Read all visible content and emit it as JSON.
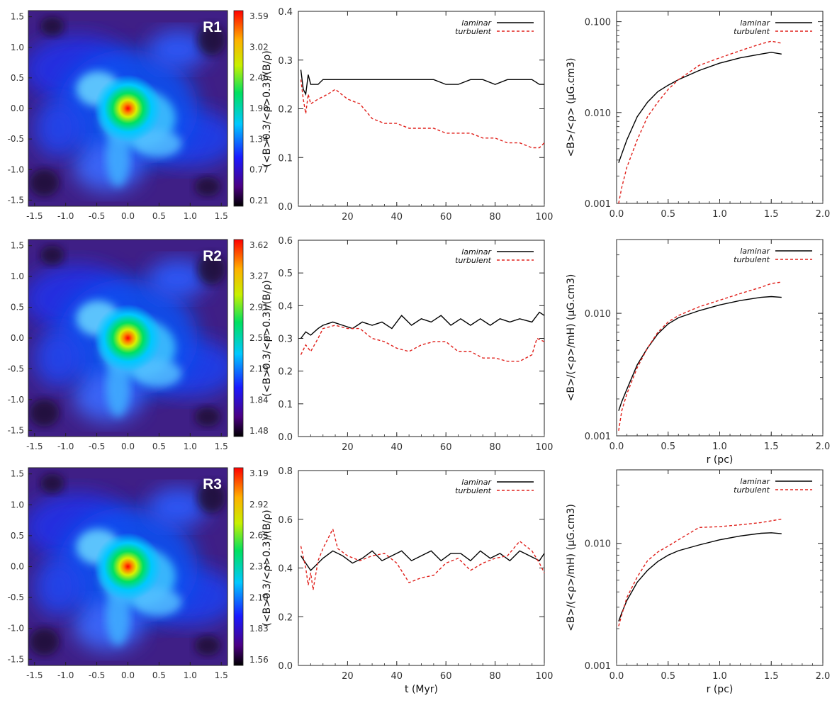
{
  "chart_data": [
    {
      "type": "heatmap",
      "panel_label": "R1",
      "xticks": [
        "-1.5",
        "-1.0",
        "-0.5",
        "0.0",
        "0.5",
        "1.0",
        "1.5"
      ],
      "yticks": [
        "1.5",
        "1.0",
        "0.5",
        "0.0",
        "-0.5",
        "-1.0",
        "-1.5"
      ],
      "xlim": [
        -1.6,
        1.6
      ],
      "ylim": [
        -1.6,
        1.6
      ],
      "colorbar_ticks": [
        "3.59",
        "3.02",
        "2.46",
        "1.90",
        "1.34",
        "0.77",
        "0.21"
      ],
      "colorbar_range": [
        0.21,
        3.59
      ],
      "colormap": "rainbow"
    },
    {
      "type": "line",
      "ylabel": "(<B>0.3/<ρ>0.3)/(B/ρ)",
      "xlabel": "",
      "xlim": [
        0,
        100
      ],
      "ylim": [
        0.0,
        0.4
      ],
      "xticks": [
        "20",
        "40",
        "60",
        "80",
        "100"
      ],
      "yticks": [
        "0.0",
        "0.1",
        "0.2",
        "0.3",
        "0.4"
      ],
      "legend": "top-right",
      "series": [
        {
          "name": "laminar",
          "color": "#000000",
          "style": "solid",
          "x": [
            1,
            2,
            3,
            4,
            5,
            6,
            8,
            10,
            15,
            20,
            25,
            30,
            35,
            40,
            45,
            50,
            55,
            60,
            65,
            70,
            75,
            80,
            85,
            90,
            95,
            98,
            100
          ],
          "y": [
            0.28,
            0.24,
            0.23,
            0.27,
            0.25,
            0.25,
            0.25,
            0.26,
            0.26,
            0.26,
            0.26,
            0.26,
            0.26,
            0.26,
            0.26,
            0.26,
            0.26,
            0.25,
            0.25,
            0.26,
            0.26,
            0.25,
            0.26,
            0.26,
            0.26,
            0.25,
            0.25
          ]
        },
        {
          "name": "turbulent",
          "color": "#e0201b",
          "style": "dashed",
          "x": [
            1,
            2,
            3,
            4,
            5,
            8,
            12,
            15,
            20,
            25,
            30,
            35,
            40,
            45,
            50,
            55,
            60,
            65,
            70,
            75,
            80,
            85,
            90,
            95,
            98,
            100
          ],
          "y": [
            0.26,
            0.22,
            0.19,
            0.23,
            0.21,
            0.22,
            0.23,
            0.24,
            0.22,
            0.21,
            0.18,
            0.17,
            0.17,
            0.16,
            0.16,
            0.16,
            0.15,
            0.15,
            0.15,
            0.14,
            0.14,
            0.13,
            0.13,
            0.12,
            0.12,
            0.13
          ]
        }
      ]
    },
    {
      "type": "line",
      "ylabel": "<B>/<ρ> (μG.cm3)",
      "xlabel": "",
      "log_y": true,
      "xlim": [
        0.0,
        2.0
      ],
      "ylim": [
        0.001,
        0.13
      ],
      "xticks": [
        "0.0",
        "0.5",
        "1.0",
        "1.5",
        "2.0"
      ],
      "yticks": [
        "0.100",
        "0.010",
        "0.001"
      ],
      "legend": "top-right",
      "series": [
        {
          "name": "laminar",
          "color": "#000000",
          "style": "solid",
          "x": [
            0.02,
            0.05,
            0.1,
            0.2,
            0.3,
            0.4,
            0.5,
            0.6,
            0.8,
            1.0,
            1.2,
            1.4,
            1.5,
            1.6
          ],
          "y": [
            0.0028,
            0.0035,
            0.005,
            0.009,
            0.013,
            0.017,
            0.02,
            0.023,
            0.029,
            0.035,
            0.04,
            0.044,
            0.046,
            0.044
          ]
        },
        {
          "name": "turbulent",
          "color": "#e0201b",
          "style": "dashed",
          "x": [
            0.02,
            0.05,
            0.1,
            0.2,
            0.3,
            0.4,
            0.5,
            0.6,
            0.8,
            1.0,
            1.2,
            1.4,
            1.5,
            1.6
          ],
          "y": [
            0.001,
            0.0015,
            0.0025,
            0.005,
            0.009,
            0.013,
            0.018,
            0.023,
            0.033,
            0.04,
            0.048,
            0.057,
            0.061,
            0.058
          ]
        }
      ]
    },
    {
      "type": "heatmap",
      "panel_label": "R2",
      "xticks": [
        "-1.5",
        "-1.0",
        "-0.5",
        "0.0",
        "0.5",
        "1.0",
        "1.5"
      ],
      "yticks": [
        "1.5",
        "1.0",
        "0.5",
        "0.0",
        "-0.5",
        "-1.0",
        "-1.5"
      ],
      "xlim": [
        -1.6,
        1.6
      ],
      "ylim": [
        -1.6,
        1.6
      ],
      "colorbar_ticks": [
        "3.62",
        "3.27",
        "2.91",
        "2.55",
        "2.19",
        "1.84",
        "1.48"
      ],
      "colorbar_range": [
        1.48,
        3.62
      ],
      "colormap": "rainbow"
    },
    {
      "type": "line",
      "ylabel": "(<B>0.3/<ρ>0.3)/(B/ρ)",
      "xlabel": "",
      "xlim": [
        0,
        100
      ],
      "ylim": [
        0.0,
        0.6
      ],
      "xticks": [
        "20",
        "40",
        "60",
        "80",
        "100"
      ],
      "yticks": [
        "0.0",
        "0.1",
        "0.2",
        "0.3",
        "0.4",
        "0.5",
        "0.6"
      ],
      "legend": "top-right",
      "series": [
        {
          "name": "laminar",
          "color": "#000000",
          "style": "solid",
          "x": [
            1,
            3,
            5,
            8,
            10,
            14,
            18,
            22,
            26,
            30,
            34,
            38,
            42,
            46,
            50,
            54,
            58,
            62,
            66,
            70,
            74,
            78,
            82,
            86,
            90,
            95,
            98,
            100
          ],
          "y": [
            0.3,
            0.32,
            0.31,
            0.33,
            0.34,
            0.35,
            0.34,
            0.33,
            0.35,
            0.34,
            0.35,
            0.33,
            0.37,
            0.34,
            0.36,
            0.35,
            0.37,
            0.34,
            0.36,
            0.34,
            0.36,
            0.34,
            0.36,
            0.35,
            0.36,
            0.35,
            0.38,
            0.37
          ]
        },
        {
          "name": "turbulent",
          "color": "#e0201b",
          "style": "dashed",
          "x": [
            1,
            3,
            5,
            8,
            10,
            15,
            20,
            25,
            30,
            35,
            40,
            45,
            50,
            55,
            60,
            65,
            70,
            75,
            80,
            85,
            90,
            95,
            97,
            100
          ],
          "y": [
            0.25,
            0.28,
            0.26,
            0.3,
            0.33,
            0.34,
            0.33,
            0.33,
            0.3,
            0.29,
            0.27,
            0.26,
            0.28,
            0.29,
            0.29,
            0.26,
            0.26,
            0.24,
            0.24,
            0.23,
            0.23,
            0.25,
            0.3,
            0.29
          ]
        }
      ]
    },
    {
      "type": "line",
      "ylabel": "<B>/(<ρ>/mH) (μG.cm3)",
      "xlabel": "r (pc)",
      "log_y": true,
      "xlim": [
        0.0,
        2.0
      ],
      "ylim": [
        0.001,
        0.04
      ],
      "xticks": [
        "0.0",
        "0.5",
        "1.0",
        "1.5",
        "2.0"
      ],
      "yticks": [
        "0.010",
        "0.001"
      ],
      "legend": "top-right",
      "series": [
        {
          "name": "laminar",
          "color": "#000000",
          "style": "solid",
          "x": [
            0.02,
            0.05,
            0.1,
            0.2,
            0.3,
            0.4,
            0.5,
            0.6,
            0.8,
            1.0,
            1.2,
            1.4,
            1.5,
            1.6
          ],
          "y": [
            0.0016,
            0.0019,
            0.0024,
            0.0038,
            0.0052,
            0.0068,
            0.0082,
            0.0092,
            0.0105,
            0.0117,
            0.0127,
            0.0135,
            0.0137,
            0.0135
          ]
        },
        {
          "name": "turbulent",
          "color": "#e0201b",
          "style": "dashed",
          "x": [
            0.02,
            0.05,
            0.1,
            0.2,
            0.3,
            0.4,
            0.5,
            0.6,
            0.8,
            1.0,
            1.2,
            1.4,
            1.5,
            1.6
          ],
          "y": [
            0.0011,
            0.0016,
            0.0022,
            0.0036,
            0.0052,
            0.007,
            0.0085,
            0.0096,
            0.0113,
            0.0128,
            0.0145,
            0.0163,
            0.0175,
            0.018
          ]
        }
      ]
    },
    {
      "type": "heatmap",
      "panel_label": "R3",
      "xticks": [
        "-1.5",
        "-1.0",
        "-0.5",
        "0.0",
        "0.5",
        "1.0",
        "1.5"
      ],
      "yticks": [
        "1.5",
        "1.0",
        "0.5",
        "0.0",
        "-0.5",
        "-1.0",
        "-1.5"
      ],
      "xlim": [
        -1.6,
        1.6
      ],
      "ylim": [
        -1.6,
        1.6
      ],
      "colorbar_ticks": [
        "3.19",
        "2.92",
        "2.65",
        "2.37",
        "2.10",
        "1.83",
        "1.56"
      ],
      "colorbar_range": [
        1.56,
        3.19
      ],
      "colormap": "rainbow"
    },
    {
      "type": "line",
      "ylabel": "(<B>0.3/<ρ>0.3)/(B/ρ)",
      "xlabel": "t (Myr)",
      "xlim": [
        0,
        100
      ],
      "ylim": [
        0.0,
        0.8
      ],
      "xticks": [
        "20",
        "40",
        "60",
        "80",
        "100"
      ],
      "yticks": [
        "0.0",
        "0.2",
        "0.4",
        "0.6",
        "0.8"
      ],
      "legend": "top-right",
      "series": [
        {
          "name": "laminar",
          "color": "#000000",
          "style": "solid",
          "x": [
            1,
            3,
            5,
            7,
            10,
            14,
            18,
            22,
            26,
            30,
            34,
            38,
            42,
            46,
            50,
            54,
            58,
            62,
            66,
            70,
            74,
            78,
            82,
            86,
            90,
            94,
            98,
            100
          ],
          "y": [
            0.45,
            0.42,
            0.39,
            0.41,
            0.44,
            0.47,
            0.45,
            0.42,
            0.44,
            0.47,
            0.43,
            0.45,
            0.47,
            0.43,
            0.45,
            0.47,
            0.43,
            0.46,
            0.46,
            0.43,
            0.47,
            0.44,
            0.46,
            0.43,
            0.47,
            0.45,
            0.43,
            0.46
          ]
        },
        {
          "name": "turbulent",
          "color": "#e0201b",
          "style": "dashed",
          "x": [
            1,
            3,
            4,
            5,
            6,
            8,
            10,
            12,
            14,
            16,
            20,
            25,
            30,
            35,
            40,
            45,
            50,
            55,
            60,
            65,
            70,
            75,
            80,
            85,
            90,
            95,
            98,
            100
          ],
          "y": [
            0.49,
            0.4,
            0.33,
            0.38,
            0.31,
            0.43,
            0.48,
            0.52,
            0.56,
            0.48,
            0.45,
            0.43,
            0.45,
            0.46,
            0.42,
            0.34,
            0.36,
            0.37,
            0.42,
            0.44,
            0.39,
            0.42,
            0.44,
            0.45,
            0.51,
            0.47,
            0.42,
            0.38
          ]
        }
      ]
    },
    {
      "type": "line",
      "ylabel": "<B>/(<ρ>/mH) (μG.cm3)",
      "xlabel": "r (pc)",
      "log_y": true,
      "xlim": [
        0.0,
        2.0
      ],
      "ylim": [
        0.001,
        0.04
      ],
      "xticks": [
        "0.0",
        "0.5",
        "1.0",
        "1.5",
        "2.0"
      ],
      "yticks": [
        "0.010",
        "0.001"
      ],
      "legend": "top-right",
      "series": [
        {
          "name": "laminar",
          "color": "#000000",
          "style": "solid",
          "x": [
            0.02,
            0.05,
            0.1,
            0.2,
            0.3,
            0.4,
            0.5,
            0.6,
            0.8,
            1.0,
            1.2,
            1.4,
            1.5,
            1.6
          ],
          "y": [
            0.0023,
            0.0027,
            0.0034,
            0.0048,
            0.006,
            0.0071,
            0.008,
            0.0087,
            0.0097,
            0.0107,
            0.0115,
            0.0121,
            0.0122,
            0.012
          ]
        },
        {
          "name": "turbulent",
          "color": "#e0201b",
          "style": "dashed",
          "x": [
            0.02,
            0.05,
            0.1,
            0.2,
            0.3,
            0.4,
            0.5,
            0.6,
            0.8,
            1.0,
            1.2,
            1.4,
            1.5,
            1.6
          ],
          "y": [
            0.0021,
            0.0026,
            0.0036,
            0.0053,
            0.0072,
            0.0085,
            0.0095,
            0.0107,
            0.0135,
            0.0137,
            0.0142,
            0.0148,
            0.0153,
            0.0158
          ]
        }
      ]
    }
  ]
}
